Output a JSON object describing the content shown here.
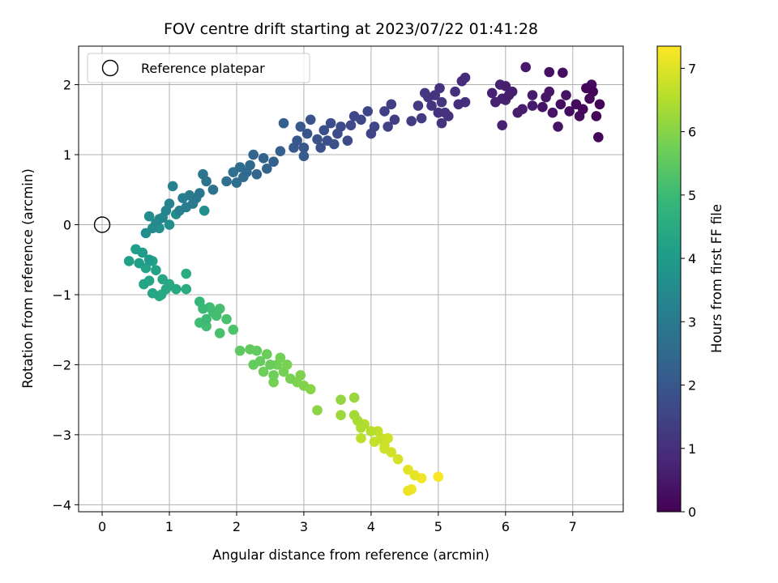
{
  "chart_data": {
    "type": "scatter",
    "title": "FOV centre drift starting at 2023/07/22 01:41:28",
    "xlabel": "Angular distance from reference (arcmin)",
    "ylabel": "Rotation from reference (arcmin)",
    "xlim": [
      -0.35,
      7.75
    ],
    "ylim": [
      -4.1,
      2.55
    ],
    "xticks": [
      0,
      1,
      2,
      3,
      4,
      5,
      6,
      7
    ],
    "yticks": [
      -4,
      -3,
      -2,
      -1,
      0,
      1,
      2
    ],
    "grid": true,
    "legend": {
      "placement": "upper-left",
      "label": "Reference platepar"
    },
    "reference_point": {
      "x": 0,
      "y": 0
    },
    "colorbar": {
      "label": "Hours from first FF file",
      "range": [
        0,
        7.35
      ],
      "ticks": [
        0,
        1,
        2,
        3,
        4,
        5,
        6,
        7
      ],
      "colormap": "viridis"
    },
    "colormap_stops": [
      "#440154",
      "#482878",
      "#3e4989",
      "#31688e",
      "#26828e",
      "#1f9e89",
      "#35b779",
      "#6ece58",
      "#b5de2b",
      "#fde725"
    ],
    "series": [
      {
        "points": [
          [
            7.3,
            1.9,
            0.05
          ],
          [
            7.4,
            1.72,
            0.05
          ],
          [
            7.35,
            1.55,
            0.08
          ],
          [
            7.2,
            1.95,
            0.1
          ],
          [
            7.15,
            1.65,
            0.15
          ],
          [
            7.38,
            1.25,
            0.1
          ],
          [
            7.25,
            1.8,
            0.12
          ],
          [
            7.05,
            1.72,
            0.18
          ],
          [
            7.28,
            2.0,
            0.2
          ],
          [
            7.1,
            1.55,
            0.22
          ],
          [
            6.95,
            1.62,
            0.25
          ],
          [
            6.82,
            1.72,
            0.28
          ],
          [
            6.85,
            2.17,
            0.3
          ],
          [
            6.65,
            2.18,
            0.32
          ],
          [
            6.9,
            1.85,
            0.35
          ],
          [
            6.7,
            1.6,
            0.38
          ],
          [
            6.55,
            1.68,
            0.4
          ],
          [
            6.78,
            1.4,
            0.42
          ],
          [
            6.6,
            1.82,
            0.44
          ],
          [
            6.65,
            1.9,
            0.45
          ],
          [
            6.3,
            2.25,
            0.5
          ],
          [
            6.4,
            1.7,
            0.55
          ],
          [
            6.25,
            1.65,
            0.58
          ],
          [
            6.4,
            1.85,
            0.55
          ],
          [
            6.18,
            1.6,
            0.58
          ],
          [
            6.1,
            1.9,
            0.62
          ],
          [
            6.0,
            1.98,
            0.62
          ],
          [
            5.95,
            1.8,
            0.65
          ],
          [
            6.05,
            1.85,
            0.6
          ],
          [
            5.85,
            1.75,
            0.68
          ],
          [
            5.95,
            1.42,
            0.7
          ],
          [
            5.8,
            1.88,
            0.7
          ],
          [
            5.92,
            2.0,
            0.72
          ],
          [
            6.0,
            1.78,
            0.75
          ],
          [
            5.4,
            2.1,
            0.9
          ],
          [
            5.35,
            2.05,
            0.92
          ],
          [
            5.3,
            1.72,
            0.95
          ],
          [
            5.4,
            1.75,
            1.0
          ],
          [
            5.25,
            1.9,
            1.0
          ],
          [
            5.1,
            1.6,
            1.05
          ],
          [
            5.05,
            1.45,
            1.08
          ],
          [
            5.15,
            1.55,
            1.1
          ],
          [
            5.0,
            1.6,
            1.05
          ],
          [
            5.02,
            1.95,
            1.1
          ],
          [
            4.95,
            1.85,
            1.12
          ],
          [
            4.9,
            1.7,
            1.15
          ],
          [
            4.85,
            1.82,
            1.18
          ],
          [
            5.05,
            1.75,
            1.2
          ],
          [
            4.8,
            1.88,
            1.22
          ],
          [
            4.7,
            1.7,
            1.25
          ],
          [
            4.75,
            1.52,
            1.28
          ],
          [
            4.6,
            1.48,
            1.3
          ],
          [
            4.35,
            1.5,
            1.35
          ],
          [
            4.3,
            1.72,
            1.4
          ],
          [
            4.2,
            1.62,
            1.42
          ],
          [
            4.25,
            1.4,
            1.45
          ],
          [
            4.0,
            1.3,
            1.5
          ],
          [
            3.95,
            1.62,
            1.55
          ],
          [
            4.05,
            1.4,
            1.55
          ],
          [
            3.85,
            1.5,
            1.6
          ],
          [
            3.75,
            1.55,
            1.6
          ],
          [
            3.7,
            1.42,
            1.65
          ],
          [
            3.65,
            1.2,
            1.7
          ],
          [
            3.55,
            1.4,
            1.7
          ],
          [
            3.5,
            1.3,
            1.75
          ],
          [
            3.4,
            1.45,
            1.75
          ],
          [
            3.3,
            1.35,
            1.8
          ],
          [
            3.35,
            1.2,
            1.8
          ],
          [
            3.45,
            1.15,
            1.85
          ],
          [
            3.25,
            1.1,
            1.85
          ],
          [
            3.2,
            1.22,
            1.9
          ],
          [
            3.1,
            1.5,
            1.9
          ],
          [
            3.05,
            1.3,
            1.95
          ],
          [
            3.0,
            1.1,
            2.0
          ],
          [
            2.9,
            1.2,
            2.0
          ],
          [
            2.95,
            1.4,
            2.05
          ],
          [
            2.85,
            1.1,
            2.1
          ],
          [
            3.0,
            0.98,
            2.15
          ],
          [
            2.7,
            1.45,
            2.2
          ],
          [
            2.65,
            1.05,
            2.2
          ],
          [
            2.55,
            0.9,
            2.25
          ],
          [
            2.4,
            0.95,
            2.3
          ],
          [
            2.45,
            0.8,
            2.35
          ],
          [
            2.3,
            0.72,
            2.4
          ],
          [
            2.25,
            1.0,
            2.4
          ],
          [
            2.2,
            0.85,
            2.45
          ],
          [
            2.15,
            0.75,
            2.5
          ],
          [
            2.1,
            0.68,
            2.55
          ],
          [
            2.05,
            0.82,
            2.6
          ],
          [
            2.0,
            0.6,
            2.65
          ],
          [
            1.95,
            0.75,
            2.7
          ],
          [
            1.85,
            0.62,
            2.7
          ],
          [
            1.65,
            0.5,
            2.75
          ],
          [
            1.55,
            0.62,
            2.8
          ],
          [
            1.5,
            0.72,
            2.85
          ],
          [
            1.45,
            0.45,
            2.9
          ],
          [
            1.4,
            0.38,
            2.95
          ],
          [
            1.35,
            0.3,
            3.0
          ],
          [
            1.3,
            0.42,
            3.05
          ],
          [
            1.25,
            0.25,
            3.1
          ],
          [
            1.2,
            0.38,
            3.15
          ],
          [
            1.15,
            0.2,
            3.2
          ],
          [
            1.05,
            0.55,
            3.25
          ],
          [
            1.0,
            0.3,
            3.3
          ],
          [
            0.95,
            0.2,
            3.35
          ],
          [
            0.9,
            0.1,
            3.4
          ],
          [
            0.85,
            0.08,
            3.45
          ],
          [
            0.8,
            0.02,
            3.5
          ],
          [
            0.75,
            -0.05,
            3.55
          ],
          [
            0.7,
            0.12,
            3.55
          ],
          [
            0.65,
            -0.12,
            3.6
          ],
          [
            1.52,
            0.2,
            3.65
          ],
          [
            1.1,
            0.15,
            3.6
          ],
          [
            1.0,
            0.0,
            3.65
          ],
          [
            0.85,
            -0.05,
            3.7
          ],
          [
            0.7,
            -0.5,
            4.0
          ],
          [
            0.6,
            -0.4,
            4.05
          ],
          [
            0.55,
            -0.55,
            4.1
          ],
          [
            0.5,
            -0.35,
            4.1
          ],
          [
            0.4,
            -0.52,
            4.15
          ],
          [
            0.65,
            -0.62,
            4.2
          ],
          [
            0.75,
            -0.52,
            4.2
          ],
          [
            0.8,
            -0.65,
            4.25
          ],
          [
            0.7,
            -0.8,
            4.3
          ],
          [
            0.62,
            -0.85,
            4.3
          ],
          [
            0.75,
            -0.98,
            4.35
          ],
          [
            0.9,
            -0.78,
            4.35
          ],
          [
            0.95,
            -0.92,
            4.4
          ],
          [
            0.88,
            -1.0,
            4.4
          ],
          [
            1.0,
            -0.85,
            4.45
          ],
          [
            1.1,
            -0.92,
            4.45
          ],
          [
            1.25,
            -0.92,
            4.5
          ],
          [
            0.85,
            -1.02,
            4.5
          ],
          [
            1.25,
            -0.7,
            4.55
          ],
          [
            1.45,
            -1.1,
            4.9
          ],
          [
            1.5,
            -1.2,
            5.0
          ],
          [
            1.55,
            -1.35,
            5.0
          ],
          [
            1.6,
            -1.18,
            5.05
          ],
          [
            1.45,
            -1.4,
            5.05
          ],
          [
            1.55,
            -1.45,
            5.1
          ],
          [
            1.65,
            -1.25,
            5.1
          ],
          [
            1.7,
            -1.3,
            5.15
          ],
          [
            1.75,
            -1.2,
            5.15
          ],
          [
            1.85,
            -1.35,
            5.2
          ],
          [
            1.75,
            -1.55,
            5.2
          ],
          [
            1.95,
            -1.5,
            5.25
          ],
          [
            2.05,
            -1.8,
            5.5
          ],
          [
            2.2,
            -1.78,
            5.55
          ],
          [
            2.3,
            -1.8,
            5.55
          ],
          [
            2.35,
            -1.95,
            5.6
          ],
          [
            2.25,
            -2.0,
            5.6
          ],
          [
            2.45,
            -1.85,
            5.65
          ],
          [
            2.5,
            -2.0,
            5.65
          ],
          [
            2.4,
            -2.1,
            5.7
          ],
          [
            2.55,
            -2.15,
            5.7
          ],
          [
            2.6,
            -2.0,
            5.75
          ],
          [
            2.65,
            -1.9,
            5.75
          ],
          [
            2.7,
            -2.1,
            5.8
          ],
          [
            2.55,
            -2.25,
            5.8
          ],
          [
            2.75,
            -2.0,
            5.85
          ],
          [
            2.8,
            -2.2,
            5.85
          ],
          [
            2.9,
            -2.25,
            5.9
          ],
          [
            2.95,
            -2.15,
            5.9
          ],
          [
            3.0,
            -2.3,
            5.95
          ],
          [
            3.1,
            -2.35,
            6.0
          ],
          [
            3.2,
            -2.65,
            6.05
          ],
          [
            3.55,
            -2.5,
            6.15
          ],
          [
            3.75,
            -2.47,
            6.2
          ],
          [
            3.55,
            -2.72,
            6.25
          ],
          [
            3.75,
            -2.72,
            6.35
          ],
          [
            3.8,
            -2.8,
            6.4
          ],
          [
            3.85,
            -2.9,
            6.45
          ],
          [
            3.9,
            -2.85,
            6.5
          ],
          [
            4.0,
            -2.95,
            6.55
          ],
          [
            3.85,
            -3.05,
            6.6
          ],
          [
            4.1,
            -2.95,
            6.65
          ],
          [
            4.05,
            -3.1,
            6.7
          ],
          [
            4.15,
            -3.05,
            6.75
          ],
          [
            4.2,
            -3.2,
            6.8
          ],
          [
            4.25,
            -3.05,
            6.8
          ],
          [
            4.3,
            -3.25,
            6.85
          ],
          [
            4.2,
            -3.15,
            6.85
          ],
          [
            4.4,
            -3.35,
            6.9
          ],
          [
            4.55,
            -3.5,
            7.05
          ],
          [
            4.65,
            -3.58,
            7.1
          ],
          [
            4.55,
            -3.8,
            7.15
          ],
          [
            4.75,
            -3.62,
            7.2
          ],
          [
            4.6,
            -3.78,
            7.2
          ],
          [
            5.0,
            -3.6,
            7.3
          ]
        ]
      }
    ]
  }
}
